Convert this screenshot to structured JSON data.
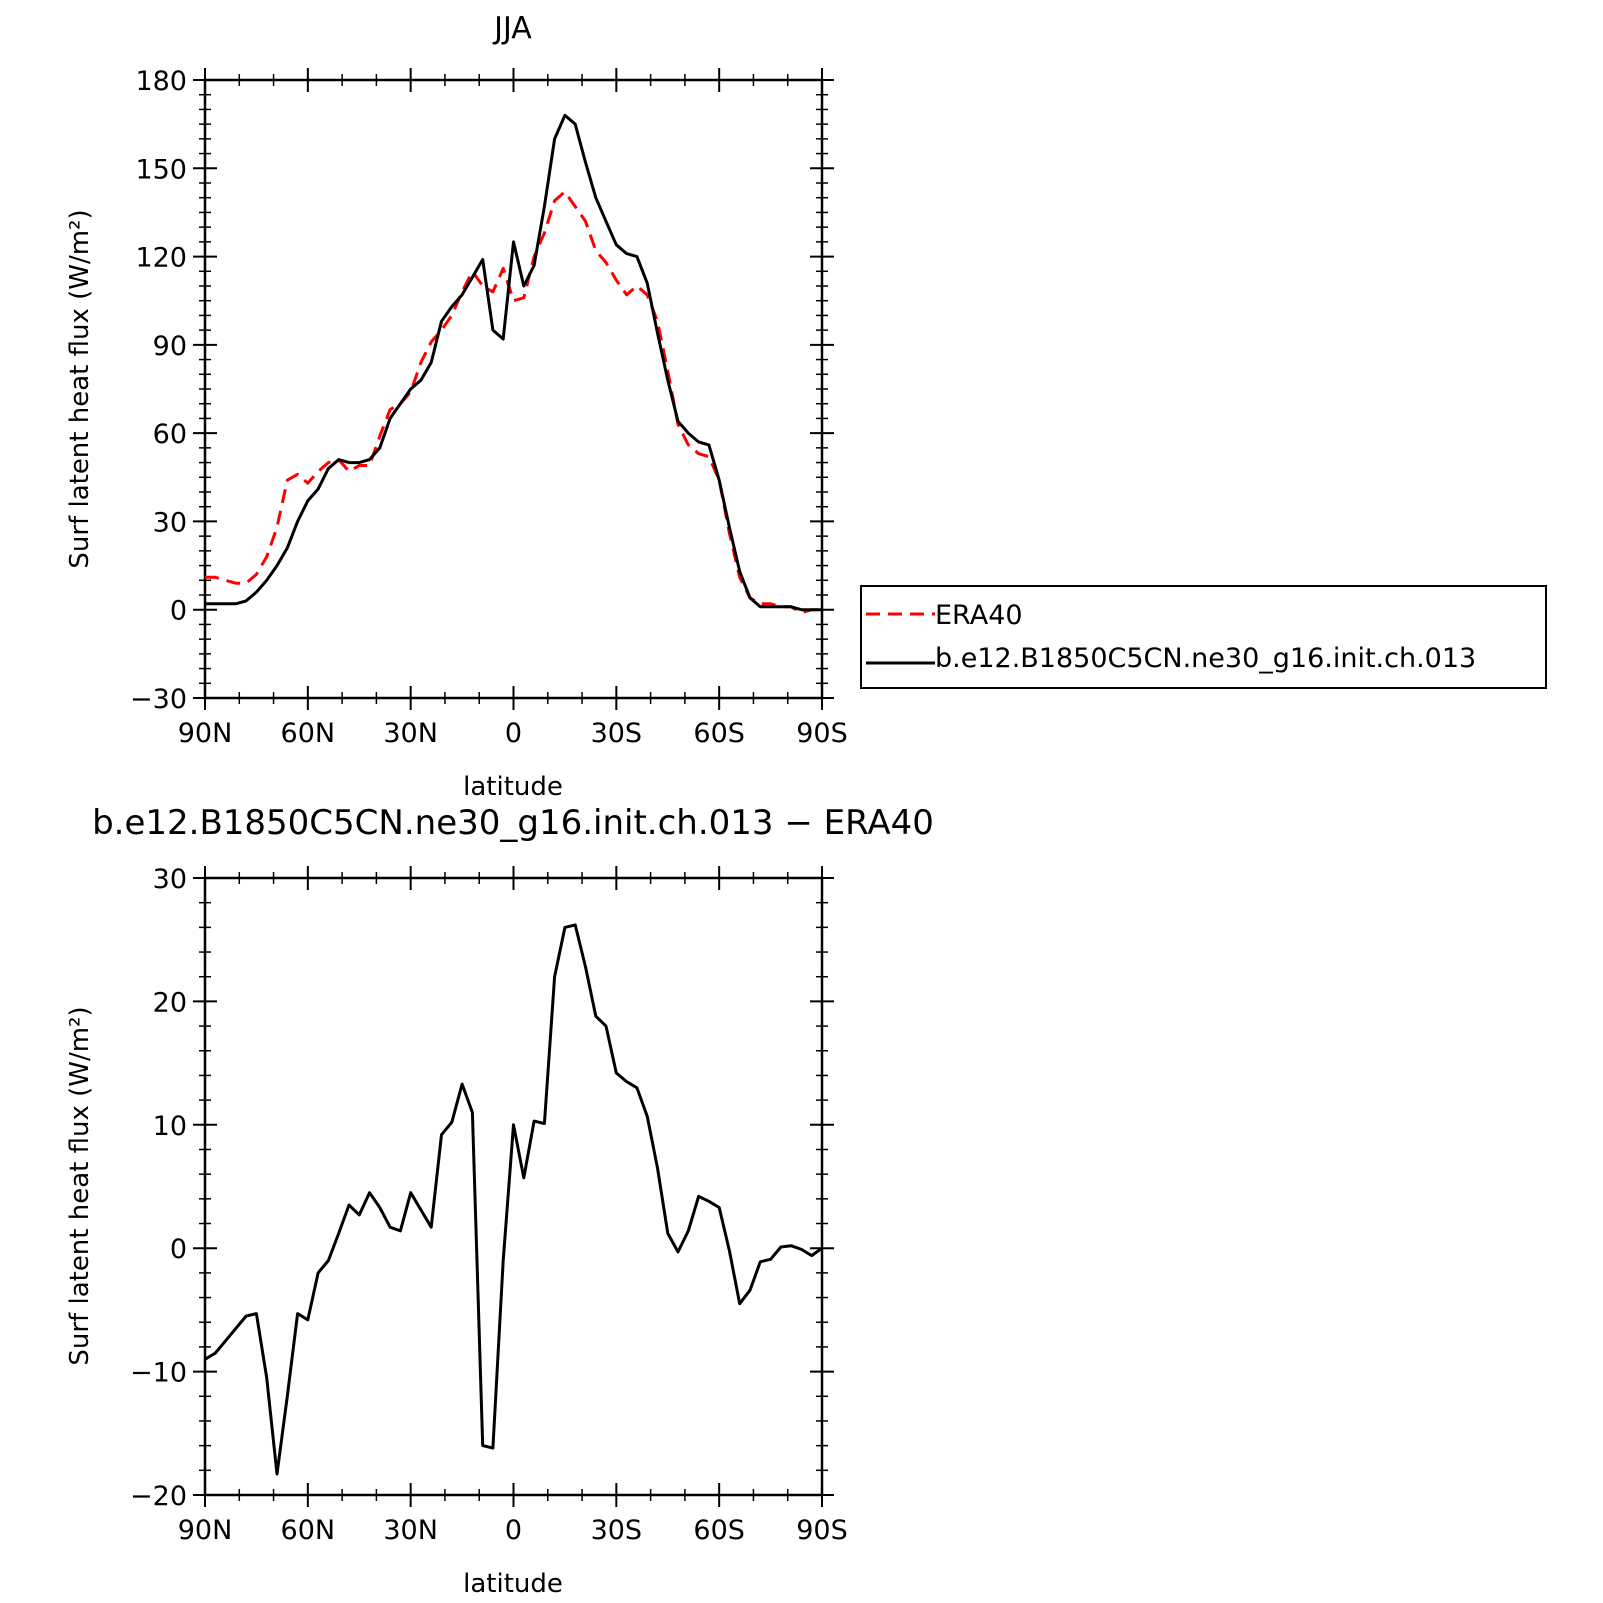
{
  "colors": {
    "era40": "#ff0000",
    "model": "#000000",
    "axis": "#000000"
  },
  "chart_data": [
    {
      "type": "line",
      "title": "JJA",
      "xlabel": "latitude",
      "ylabel": "Surf latent heat flux (W/m²)",
      "xlim": [
        90,
        -90
      ],
      "ylim": [
        -30,
        180
      ],
      "x_ticks": [
        {
          "value": 90,
          "label": "90N"
        },
        {
          "value": 60,
          "label": "60N"
        },
        {
          "value": 30,
          "label": "30N"
        },
        {
          "value": 0,
          "label": "0"
        },
        {
          "value": -30,
          "label": "30S"
        },
        {
          "value": -60,
          "label": "60S"
        },
        {
          "value": -90,
          "label": "90S"
        }
      ],
      "y_ticks": [
        -30,
        0,
        30,
        60,
        90,
        120,
        150,
        180
      ],
      "legend_position": "right",
      "series": [
        {
          "name": "ERA40",
          "color": "#ff0000",
          "dash": "dashed",
          "x": [
            90,
            87,
            84,
            81,
            78,
            75,
            72,
            69,
            66,
            63,
            60,
            57,
            54,
            51,
            48,
            45,
            42,
            39,
            36,
            33,
            30,
            27,
            24,
            21,
            18,
            15,
            12,
            9,
            6,
            3,
            0,
            -3,
            -6,
            -9,
            -12,
            -15,
            -18,
            -21,
            -24,
            -27,
            -30,
            -33,
            -36,
            -39,
            -42,
            -45,
            -48,
            -51,
            -54,
            -57,
            -60,
            -63,
            -66,
            -69,
            -72,
            -75,
            -78,
            -81,
            -84,
            -87,
            -90
          ],
          "y": [
            11,
            11,
            10,
            9,
            9,
            12,
            18,
            28,
            44,
            46,
            43,
            47,
            50,
            51,
            47,
            49,
            49,
            59,
            68,
            70,
            74,
            84,
            91,
            95,
            100,
            108,
            115,
            110,
            108,
            116,
            105,
            106,
            120,
            128,
            139,
            142,
            137,
            132,
            122,
            118,
            112,
            107,
            110,
            107,
            98,
            81,
            63,
            56,
            53,
            52,
            44,
            26,
            11,
            4,
            2,
            2,
            1,
            1,
            -1,
            0,
            0
          ]
        },
        {
          "name": "b.e12.B1850C5CN.ne30_g16.init.ch.013",
          "color": "#000000",
          "dash": "solid",
          "x": [
            90,
            87,
            84,
            81,
            78,
            75,
            72,
            69,
            66,
            63,
            60,
            57,
            54,
            51,
            48,
            45,
            42,
            39,
            36,
            33,
            30,
            27,
            24,
            21,
            18,
            15,
            12,
            9,
            6,
            3,
            0,
            -3,
            -6,
            -9,
            -12,
            -15,
            -18,
            -21,
            -24,
            -27,
            -30,
            -33,
            -36,
            -39,
            -42,
            -45,
            -48,
            -51,
            -54,
            -57,
            -60,
            -63,
            -66,
            -69,
            -72,
            -75,
            -78,
            -81,
            -84,
            -87,
            -90
          ],
          "y": [
            2,
            2,
            2,
            2,
            3,
            6,
            10,
            15,
            21,
            30,
            37,
            41,
            48,
            51,
            50,
            50,
            51,
            55,
            65,
            70,
            75,
            78,
            84,
            98,
            103,
            107,
            113,
            119,
            95,
            92,
            125,
            110,
            117,
            137,
            160,
            168,
            165,
            152,
            140,
            132,
            124,
            121,
            120,
            111,
            94,
            78,
            64,
            60,
            57,
            56,
            44,
            28,
            13,
            4,
            1,
            1,
            1,
            1,
            0,
            0,
            0
          ]
        }
      ]
    },
    {
      "type": "line",
      "title": "b.e12.B1850C5CN.ne30_g16.init.ch.013 − ERA40",
      "xlabel": "latitude",
      "ylabel": "Surf latent heat flux (W/m²)",
      "xlim": [
        90,
        -90
      ],
      "ylim": [
        -20,
        30
      ],
      "x_ticks": [
        {
          "value": 90,
          "label": "90N"
        },
        {
          "value": 60,
          "label": "60N"
        },
        {
          "value": 30,
          "label": "30N"
        },
        {
          "value": 0,
          "label": "0"
        },
        {
          "value": -30,
          "label": "30S"
        },
        {
          "value": -60,
          "label": "60S"
        },
        {
          "value": -90,
          "label": "90S"
        }
      ],
      "y_ticks": [
        -20,
        -10,
        0,
        10,
        20,
        30
      ],
      "series": [
        {
          "color": "#000000",
          "dash": "solid",
          "x": [
            90,
            87,
            84,
            81,
            78,
            75,
            72,
            69,
            66,
            63,
            60,
            57,
            54,
            51,
            48,
            45,
            42,
            39,
            36,
            33,
            30,
            27,
            24,
            21,
            18,
            15,
            12,
            9,
            6,
            3,
            0,
            -3,
            -6,
            -9,
            -12,
            -15,
            -18,
            -21,
            -24,
            -27,
            -30,
            -33,
            -36,
            -39,
            -42,
            -45,
            -48,
            -51,
            -54,
            -57,
            -60,
            -63,
            -66,
            -69,
            -72,
            -75,
            -78,
            -81,
            -84,
            -87,
            -90
          ],
          "y": [
            -9,
            -8.5,
            -7.5,
            -6.5,
            -5.5,
            -5.3,
            -10.5,
            -18.3,
            -12,
            -5.3,
            -5.8,
            -2,
            -1,
            1.2,
            3.5,
            2.7,
            4.5,
            3.3,
            1.7,
            1.4,
            4.5,
            3.1,
            1.7,
            9.2,
            10.2,
            13.3,
            11,
            -16,
            -16.2,
            -1,
            10,
            5.7,
            10.3,
            10.1,
            22,
            26,
            26.2,
            22.8,
            18.8,
            18,
            14.2,
            13.5,
            13,
            10.7,
            6.5,
            1.2,
            -0.3,
            1.4,
            4.2,
            3.8,
            3.3,
            -0.2,
            -4.5,
            -3.4,
            -1.1,
            -0.9,
            0.1,
            0.2,
            -0.1,
            -0.6,
            0
          ]
        }
      ]
    }
  ]
}
